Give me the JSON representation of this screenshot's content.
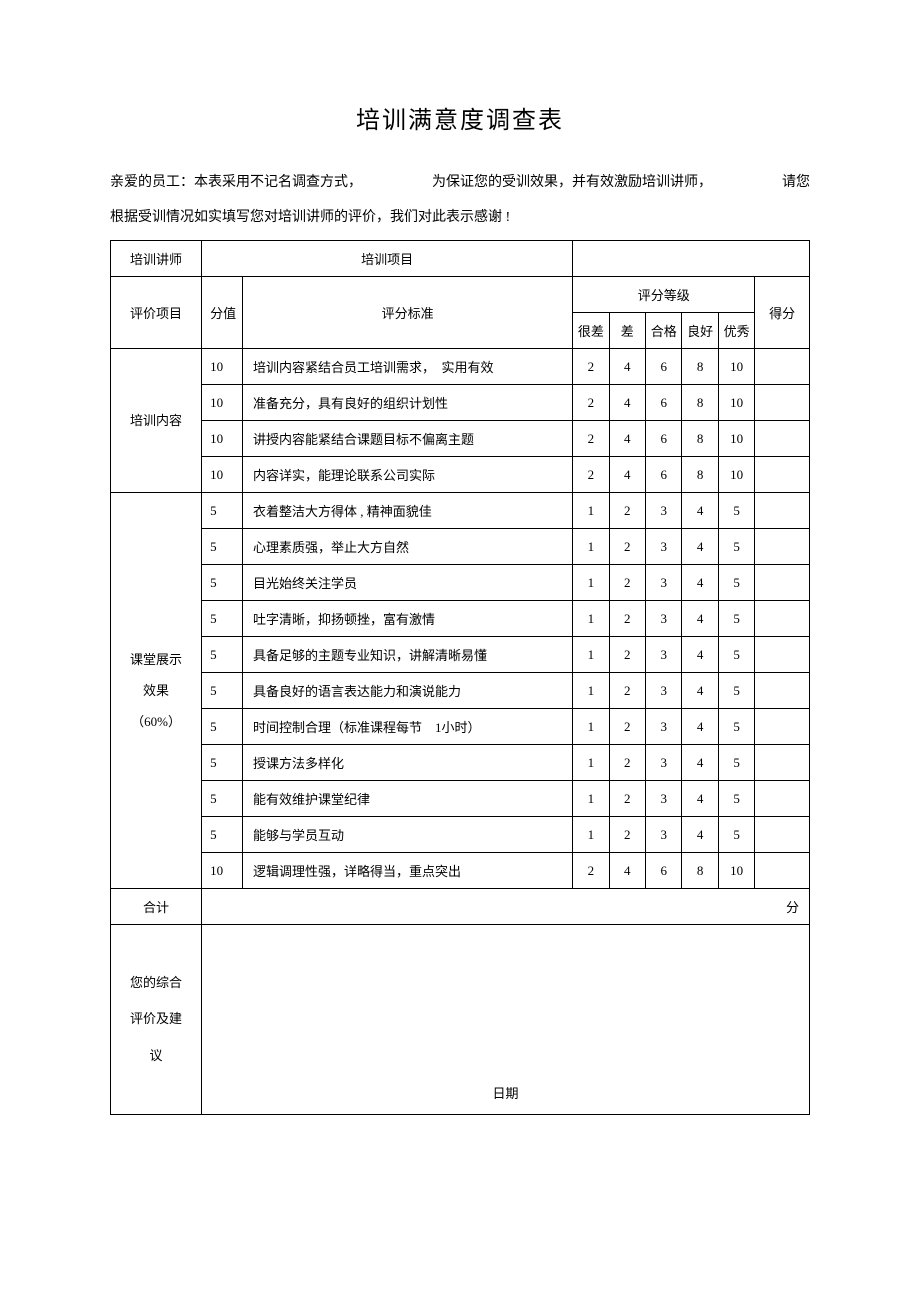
{
  "title": "培训满意度调查表",
  "intro_line1_left": "亲爱的员工：本表采用不记名调查方式，",
  "intro_line1_mid": "为保证您的受训效果，并有效激励培训讲师，",
  "intro_line1_right": "请您",
  "intro_line2": "根据受训情况如实填写您对培训讲师的评价，我们对此表示感谢 !",
  "header": {
    "trainer": "培训讲师",
    "project": "培训项目",
    "eval_item": "评价项目",
    "weight": "分值",
    "criteria": "评分标准",
    "rating": "评分等级",
    "score": "得分",
    "r1": "很差",
    "r2": "差",
    "r3": "合格",
    "r4": "良好",
    "r5": "优秀"
  },
  "sections": [
    {
      "name": "培训内容",
      "rows": [
        {
          "w": "10",
          "c": "培训内容紧结合员工培训需求，　实用有效",
          "s": [
            "2",
            "4",
            "6",
            "8",
            "10"
          ]
        },
        {
          "w": "10",
          "c": "准备充分，具有良好的组织计划性",
          "s": [
            "2",
            "4",
            "6",
            "8",
            "10"
          ]
        },
        {
          "w": "10",
          "c": "讲授内容能紧结合课题目标不偏离主题",
          "s": [
            "2",
            "4",
            "6",
            "8",
            "10"
          ]
        },
        {
          "w": "10",
          "c": "内容详实，能理论联系公司实际",
          "s": [
            "2",
            "4",
            "6",
            "8",
            "10"
          ]
        }
      ]
    },
    {
      "name": "课堂展示效果（60%）",
      "rows": [
        {
          "w": "5",
          "c": "衣着整洁大方得体 , 精神面貌佳",
          "s": [
            "1",
            "2",
            "3",
            "4",
            "5"
          ]
        },
        {
          "w": "5",
          "c": "心理素质强，举止大方自然",
          "s": [
            "1",
            "2",
            "3",
            "4",
            "5"
          ]
        },
        {
          "w": "5",
          "c": "目光始终关注学员",
          "s": [
            "1",
            "2",
            "3",
            "4",
            "5"
          ]
        },
        {
          "w": "5",
          "c": "吐字清晰，抑扬顿挫，富有激情",
          "s": [
            "1",
            "2",
            "3",
            "4",
            "5"
          ]
        },
        {
          "w": "5",
          "c": "具备足够的主题专业知识，讲解清晰易懂",
          "s": [
            "1",
            "2",
            "3",
            "4",
            "5"
          ]
        },
        {
          "w": "5",
          "c": "具备良好的语言表达能力和演说能力",
          "s": [
            "1",
            "2",
            "3",
            "4",
            "5"
          ]
        },
        {
          "w": "5",
          "c": "时间控制合理（标准课程每节　1小时）",
          "s": [
            "1",
            "2",
            "3",
            "4",
            "5"
          ]
        },
        {
          "w": "5",
          "c": "授课方法多样化",
          "s": [
            "1",
            "2",
            "3",
            "4",
            "5"
          ]
        },
        {
          "w": "5",
          "c": "能有效维护课堂纪律",
          "s": [
            "1",
            "2",
            "3",
            "4",
            "5"
          ]
        },
        {
          "w": "5",
          "c": "能够与学员互动",
          "s": [
            "1",
            "2",
            "3",
            "4",
            "5"
          ]
        },
        {
          "w": "10",
          "c": "逻辑调理性强，详略得当，重点突出",
          "s": [
            "2",
            "4",
            "6",
            "8",
            "10"
          ]
        }
      ]
    }
  ],
  "total": "合计",
  "fen": "分",
  "comments": "您的综合评价及建议",
  "date": "日期",
  "col_widths": {
    "cat": 80,
    "weight": 36,
    "criteria": 290,
    "r": 32,
    "score": 48
  }
}
